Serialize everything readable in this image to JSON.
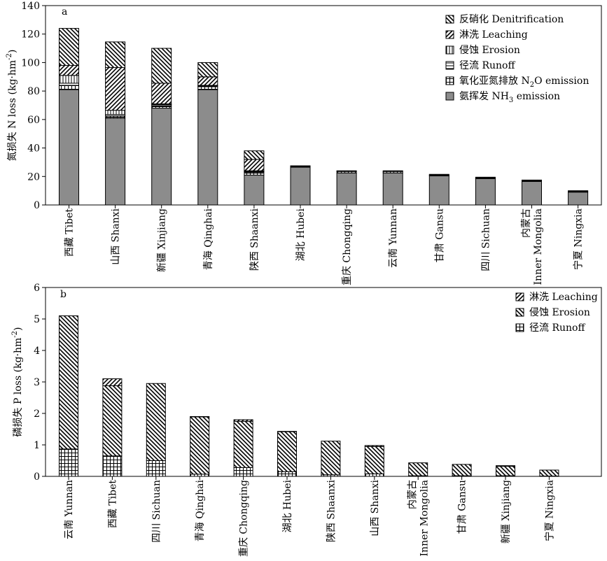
{
  "chart_data": [
    {
      "panel_label": "a",
      "type": "bar",
      "stacked": true,
      "ylabel": "氮损失 N loss (kg·hm",
      "ylabel_sup": "-2",
      "ylabel_end": ")",
      "ylim": [
        0,
        140
      ],
      "yticks": [
        0,
        20,
        40,
        60,
        80,
        100,
        120,
        140
      ],
      "grid": false,
      "legend_position": "top-right",
      "categories": [
        {
          "zh": "西藏",
          "en": "Tibet"
        },
        {
          "zh": "山西",
          "en": "Shanxi"
        },
        {
          "zh": "新疆",
          "en": "Xinjiang"
        },
        {
          "zh": "青海",
          "en": "Qinghai"
        },
        {
          "zh": "陕西",
          "en": "Shaanxi"
        },
        {
          "zh": "湖北",
          "en": "Hubei"
        },
        {
          "zh": "重庆",
          "en": "Chongqing"
        },
        {
          "zh": "云南",
          "en": "Yunnan"
        },
        {
          "zh": "甘肃",
          "en": "Gansu"
        },
        {
          "zh": "四川",
          "en": "Sichuan"
        },
        {
          "zh": "内蒙古",
          "en": "Inner Mongolia"
        },
        {
          "zh": "宁夏",
          "en": "Ningxia"
        }
      ],
      "series": [
        {
          "name": "氨挥发 NH₃ emission",
          "name_main": "氨挥发 NH",
          "name_sub": "3",
          "name_tail": " emission",
          "pattern": "solid-gray",
          "values": [
            81,
            61,
            68,
            81,
            21,
            26.5,
            22.5,
            22.5,
            20.5,
            18.5,
            16.5,
            9
          ]
        },
        {
          "name": "氧化亚氮排放 N₂O emission",
          "name_main": "氧化亚氮排放 N",
          "name_sub": "2",
          "name_tail": "O emission",
          "pattern": "cross",
          "values": [
            3,
            1.5,
            1.5,
            2,
            2,
            0.5,
            1,
            1,
            0.5,
            0.5,
            0.5,
            0.5
          ]
        },
        {
          "name": "径流 Runoff",
          "pattern": "horizontal",
          "values": [
            1.5,
            1,
            1,
            0.5,
            0.5,
            0,
            0,
            0,
            0,
            0,
            0,
            0
          ]
        },
        {
          "name": "侵蚀 Erosion",
          "pattern": "vertical",
          "values": [
            5.5,
            3,
            0.5,
            0.5,
            0.5,
            0,
            0,
            0,
            0,
            0,
            0,
            0
          ]
        },
        {
          "name": "淋洗 Leaching",
          "pattern": "diag-right",
          "values": [
            7,
            30,
            14.5,
            6,
            8,
            0,
            0,
            0,
            0,
            0,
            0,
            0
          ]
        },
        {
          "name": "反硝化 Denitrification",
          "pattern": "diag-left",
          "values": [
            26,
            18,
            24.5,
            10,
            6,
            0.5,
            0.5,
            0.5,
            0.5,
            0.5,
            0.5,
            0.5
          ]
        }
      ]
    },
    {
      "panel_label": "b",
      "type": "bar",
      "stacked": true,
      "ylabel": "磷损失 P loss (kg·hm",
      "ylabel_sup": "-2",
      "ylabel_end": ")",
      "ylim": [
        0,
        6
      ],
      "yticks": [
        0,
        1,
        2,
        3,
        4,
        5,
        6
      ],
      "grid": false,
      "legend_position": "top-right",
      "categories": [
        {
          "zh": "云南",
          "en": "Yunnan"
        },
        {
          "zh": "西藏",
          "en": "Tibet"
        },
        {
          "zh": "四川",
          "en": "Sichuan"
        },
        {
          "zh": "青海",
          "en": "Qinghai"
        },
        {
          "zh": "重庆",
          "en": "Chongqing"
        },
        {
          "zh": "湖北",
          "en": "Hubei"
        },
        {
          "zh": "陕西",
          "en": "Shaanxi"
        },
        {
          "zh": "山西",
          "en": "Shanxi"
        },
        {
          "zh": "内蒙古",
          "en": "Inner Mongolia"
        },
        {
          "zh": "甘肃",
          "en": "Gansu"
        },
        {
          "zh": "新疆",
          "en": "Xinjiang"
        },
        {
          "zh": "宁夏",
          "en": "Ningxia"
        }
      ],
      "series": [
        {
          "name": "径流 Runoff",
          "pattern": "cross",
          "values": [
            0.87,
            0.65,
            0.5,
            0.07,
            0.28,
            0.15,
            0.05,
            0.08,
            0.02,
            0.02,
            0.02,
            0.01
          ]
        },
        {
          "name": "侵蚀 Erosion",
          "pattern": "diag-left",
          "values": [
            4.23,
            2.23,
            2.45,
            1.82,
            1.47,
            1.27,
            1.07,
            0.87,
            0.41,
            0.36,
            0.3,
            0.19
          ]
        },
        {
          "name": "淋洗 Leaching",
          "pattern": "diag-right",
          "values": [
            0,
            0.22,
            0,
            0.01,
            0.05,
            0.01,
            0,
            0.03,
            0,
            0,
            0.02,
            0
          ]
        }
      ]
    }
  ]
}
